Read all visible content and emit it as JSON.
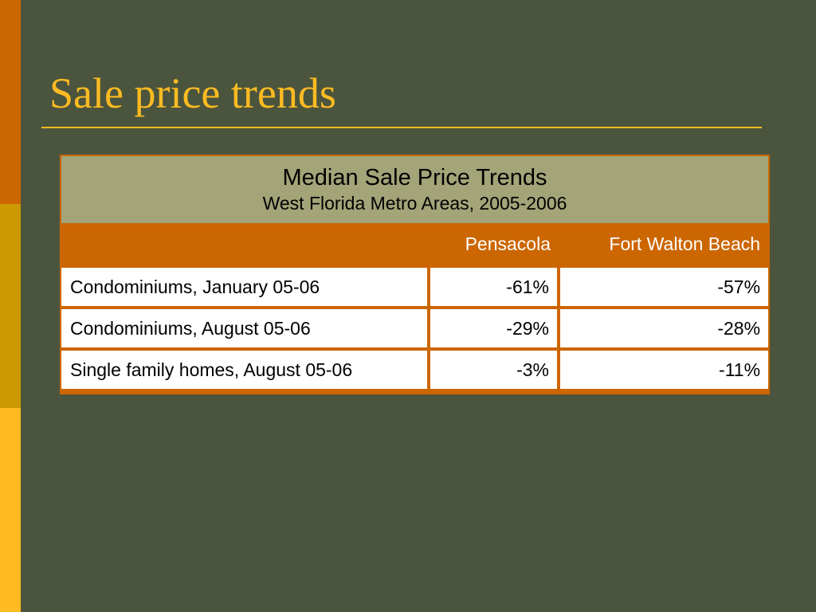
{
  "slide": {
    "title": "Sale price trends"
  },
  "table": {
    "caption_title": "Median Sale Price Trends",
    "caption_subtitle": "West Florida Metro Areas, 2005-2006",
    "columns": [
      "",
      "Pensacola",
      "Fort Walton Beach"
    ],
    "rows": [
      {
        "label": "Condominiums, January 05-06",
        "pensacola": "-61%",
        "fort_walton_beach": "-57%"
      },
      {
        "label": "Condominiums, August 05-06",
        "pensacola": "-29%",
        "fort_walton_beach": "-28%"
      },
      {
        "label": "Single family homes, August 05-06",
        "pensacola": "-3%",
        "fort_walton_beach": "-11%"
      }
    ]
  },
  "colors": {
    "background": "#4b553d",
    "accent_orange": "#cc6600",
    "accent_gold": "#cc9900",
    "accent_yellow": "#ffbb22",
    "caption_band": "#a3a478"
  }
}
